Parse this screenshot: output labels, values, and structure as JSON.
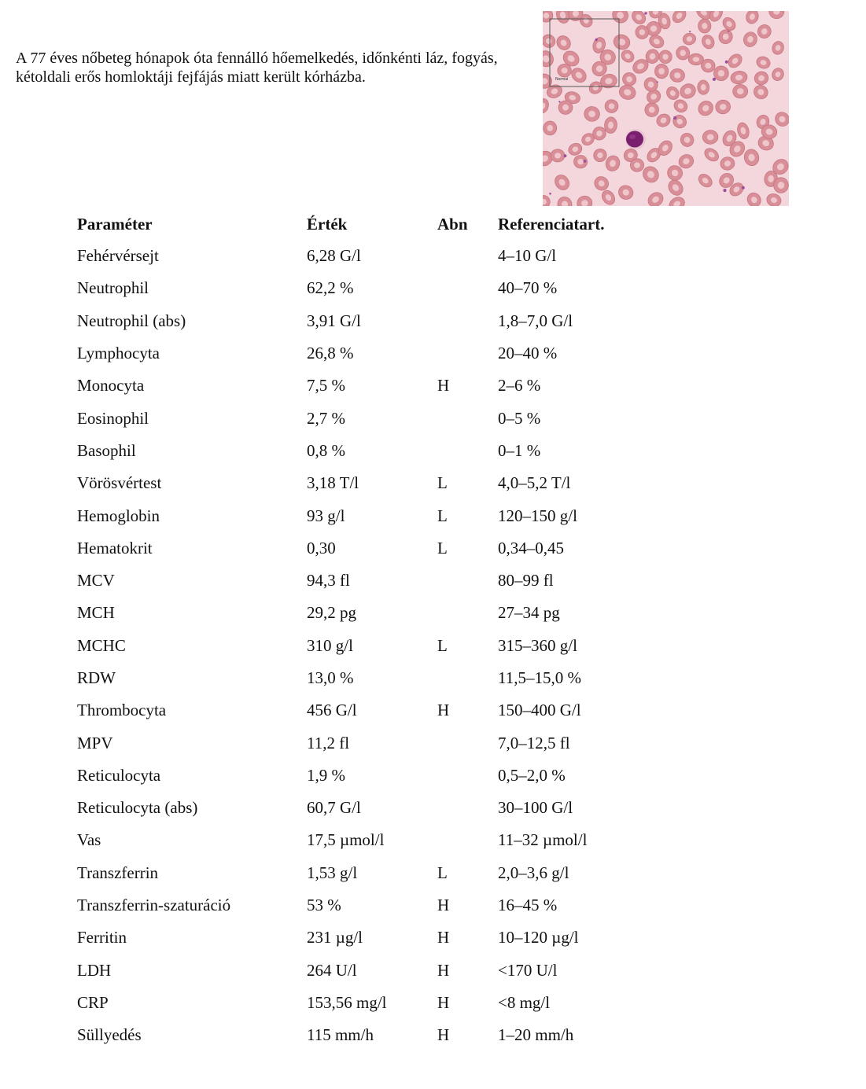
{
  "intro": {
    "text": "A 77 éves nőbeteg hónapok óta fennálló hőemelkedés, időnkénti láz, fogyás, kétoldali erős homloktáji fejfájás miatt került kórházba."
  },
  "image": {
    "inset_label": "Normal",
    "colors": {
      "background": "#f3d7dd",
      "rbc": "#d98f97",
      "rbc_edge": "#c77580",
      "nucleus": "#7a1f6e",
      "platelet": "#9b4f9c"
    }
  },
  "table": {
    "headers": {
      "parameter": "Paraméter",
      "value": "Érték",
      "abn": "Abn",
      "reference": "Referenciatart."
    },
    "rows": [
      {
        "parameter": "Fehérvérsejt",
        "value": "6,28 G/l",
        "abn": "",
        "reference": "4–10 G/l"
      },
      {
        "parameter": "Neutrophil",
        "value": "62,2 %",
        "abn": "",
        "reference": "40–70 %"
      },
      {
        "parameter": "Neutrophil (abs)",
        "value": "3,91 G/l",
        "abn": "",
        "reference": "1,8–7,0 G/l"
      },
      {
        "parameter": "Lymphocyta",
        "value": "26,8 %",
        "abn": "",
        "reference": "20–40 %"
      },
      {
        "parameter": "Monocyta",
        "value": "7,5 %",
        "abn": "H",
        "reference": "2–6 %"
      },
      {
        "parameter": "Eosinophil",
        "value": "2,7 %",
        "abn": "",
        "reference": "0–5 %"
      },
      {
        "parameter": "Basophil",
        "value": "0,8 %",
        "abn": "",
        "reference": "0–1 %"
      },
      {
        "parameter": "Vörösvértest",
        "value": "3,18 T/l",
        "abn": "L",
        "reference": "4,0–5,2 T/l"
      },
      {
        "parameter": "Hemoglobin",
        "value": "93 g/l",
        "abn": "L",
        "reference": "120–150 g/l"
      },
      {
        "parameter": "Hematokrit",
        "value": "0,30",
        "abn": "L",
        "reference": "0,34–0,45"
      },
      {
        "parameter": "MCV",
        "value": "94,3 fl",
        "abn": "",
        "reference": "80–99 fl"
      },
      {
        "parameter": "MCH",
        "value": "29,2 pg",
        "abn": "",
        "reference": "27–34 pg"
      },
      {
        "parameter": "MCHC",
        "value": "310 g/l",
        "abn": "L",
        "reference": "315–360 g/l"
      },
      {
        "parameter": "RDW",
        "value": "13,0 %",
        "abn": "",
        "reference": "11,5–15,0 %"
      },
      {
        "parameter": "Thrombocyta",
        "value": "456 G/l",
        "abn": "H",
        "reference": "150–400 G/l"
      },
      {
        "parameter": "MPV",
        "value": "11,2 fl",
        "abn": "",
        "reference": "7,0–12,5 fl"
      },
      {
        "parameter": "Reticulocyta",
        "value": "1,9 %",
        "abn": "",
        "reference": "0,5–2,0 %"
      },
      {
        "parameter": "Reticulocyta (abs)",
        "value": "60,7 G/l",
        "abn": "",
        "reference": "30–100 G/l"
      },
      {
        "parameter": "Vas",
        "value": "17,5 µmol/l",
        "abn": "",
        "reference": "11–32  µmol/l"
      },
      {
        "parameter": "Transzferrin",
        "value": "1,53 g/l",
        "abn": "L",
        "reference": "2,0–3,6 g/l"
      },
      {
        "parameter": "Transzferrin-szaturáció",
        "value": "53 %",
        "abn": "H",
        "reference": "16–45 %"
      },
      {
        "parameter": "Ferritin",
        "value": "231 µg/l",
        "abn": "H",
        "reference": "10–120  µg/l"
      },
      {
        "parameter": "LDH",
        "value": "264 U/l",
        "abn": "H",
        "reference": "<170 U/l"
      },
      {
        "parameter": "CRP",
        "value": "153,56 mg/l",
        "abn": "H",
        "reference": "<8 mg/l"
      },
      {
        "parameter": "Süllyedés",
        "value": "115 mm/h",
        "abn": "H",
        "reference": "1–20 mm/h"
      }
    ]
  }
}
